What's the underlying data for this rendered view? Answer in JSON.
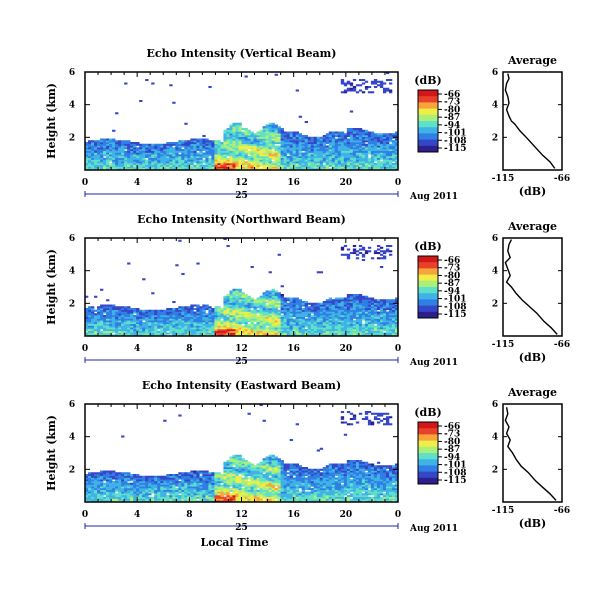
{
  "colors": {
    "colormap": [
      "#2d1f8c",
      "#3546c8",
      "#2f7fe4",
      "#3fb3e6",
      "#5fe0c8",
      "#a8f07a",
      "#f0ec48",
      "#f7a53a",
      "#e8402a",
      "#d01818"
    ]
  },
  "chart_data": [
    {
      "type": "heatmap",
      "title": "Echo Intensity (Vertical Beam)",
      "ylabel": "Height (km)",
      "x_ticks": [
        "0",
        "4",
        "8",
        "12",
        "16",
        "20",
        "0"
      ],
      "y_ticks": [
        "2",
        "4",
        "6"
      ],
      "date_label": "25",
      "date_suffix": "Aug 2011",
      "xlim": [
        0,
        24
      ],
      "ylim": [
        0,
        6
      ],
      "colorbar": {
        "unit": "(dB)",
        "ticks": [
          "-66",
          "-73",
          "-80",
          "-87",
          "-94",
          "-101",
          "-108",
          "-115"
        ],
        "range": [
          -115,
          -66
        ]
      },
      "average": {
        "title": "Average",
        "xlabel": "(dB)",
        "x_ticks": [
          "-115",
          "-66"
        ],
        "y_ticks": [
          "2",
          "4",
          "6"
        ],
        "xlim": [
          -115,
          -66
        ],
        "ylim": [
          0,
          6
        ],
        "profile": [
          [
            -72,
            0.1
          ],
          [
            -76,
            0.5
          ],
          [
            -82,
            0.9
          ],
          [
            -87,
            1.3
          ],
          [
            -92,
            1.7
          ],
          [
            -97,
            2.1
          ],
          [
            -101,
            2.4
          ],
          [
            -105,
            2.8
          ],
          [
            -108,
            3.0
          ],
          [
            -110,
            3.3
          ],
          [
            -112,
            3.7
          ],
          [
            -110,
            4.1
          ],
          [
            -111,
            4.5
          ],
          [
            -113,
            4.9
          ],
          [
            -112,
            5.3
          ],
          [
            -110,
            5.6
          ],
          [
            -111,
            5.9
          ]
        ]
      }
    },
    {
      "type": "heatmap",
      "title": "Echo Intensity (Northward Beam)",
      "ylabel": "Height (km)",
      "x_ticks": [
        "0",
        "4",
        "8",
        "12",
        "16",
        "20",
        "0"
      ],
      "y_ticks": [
        "2",
        "4",
        "6"
      ],
      "date_label": "25",
      "date_suffix": "Aug 2011",
      "xlim": [
        0,
        24
      ],
      "ylim": [
        0,
        6
      ],
      "colorbar": {
        "unit": "(dB)",
        "ticks": [
          "-66",
          "-73",
          "-80",
          "-87",
          "-94",
          "-101",
          "-108",
          "-115"
        ],
        "range": [
          -115,
          -66
        ]
      },
      "average": {
        "title": "Average",
        "xlabel": "(dB)",
        "x_ticks": [
          "-115",
          "-66"
        ],
        "y_ticks": [
          "2",
          "4",
          "6"
        ],
        "xlim": [
          -115,
          -66
        ],
        "ylim": [
          0,
          6
        ],
        "profile": [
          [
            -70,
            0.1
          ],
          [
            -75,
            0.5
          ],
          [
            -81,
            0.9
          ],
          [
            -87,
            1.4
          ],
          [
            -93,
            1.8
          ],
          [
            -99,
            2.2
          ],
          [
            -104,
            2.6
          ],
          [
            -108,
            3.0
          ],
          [
            -112,
            3.3
          ],
          [
            -109,
            3.7
          ],
          [
            -111,
            4.1
          ],
          [
            -113,
            4.5
          ],
          [
            -109,
            4.8
          ],
          [
            -111,
            5.2
          ],
          [
            -110,
            5.6
          ],
          [
            -108,
            5.9
          ]
        ]
      }
    },
    {
      "type": "heatmap",
      "title": "Echo Intensity (Eastward Beam)",
      "ylabel": "Height (km)",
      "xlabel": "Local Time",
      "x_ticks": [
        "0",
        "4",
        "8",
        "12",
        "16",
        "20",
        "0"
      ],
      "y_ticks": [
        "2",
        "4",
        "6"
      ],
      "date_label": "25",
      "date_suffix": "Aug 2011",
      "xlim": [
        0,
        24
      ],
      "ylim": [
        0,
        6
      ],
      "colorbar": {
        "unit": "(dB)",
        "ticks": [
          "-66",
          "-73",
          "-80",
          "-87",
          "-94",
          "-101",
          "-108",
          "-115"
        ],
        "range": [
          -115,
          -66
        ]
      },
      "average": {
        "title": "Average",
        "xlabel": "(dB)",
        "x_ticks": [
          "-115",
          "-66"
        ],
        "y_ticks": [
          "2",
          "4",
          "6"
        ],
        "xlim": [
          -115,
          -66
        ],
        "ylim": [
          0,
          6
        ],
        "profile": [
          [
            -71,
            0.1
          ],
          [
            -76,
            0.5
          ],
          [
            -82,
            0.9
          ],
          [
            -88,
            1.3
          ],
          [
            -94,
            1.8
          ],
          [
            -100,
            2.2
          ],
          [
            -104,
            2.6
          ],
          [
            -107,
            3.0
          ],
          [
            -111,
            3.4
          ],
          [
            -109,
            3.8
          ],
          [
            -112,
            4.2
          ],
          [
            -110,
            4.6
          ],
          [
            -113,
            5.0
          ],
          [
            -111,
            5.4
          ],
          [
            -112,
            5.8
          ]
        ]
      }
    }
  ]
}
